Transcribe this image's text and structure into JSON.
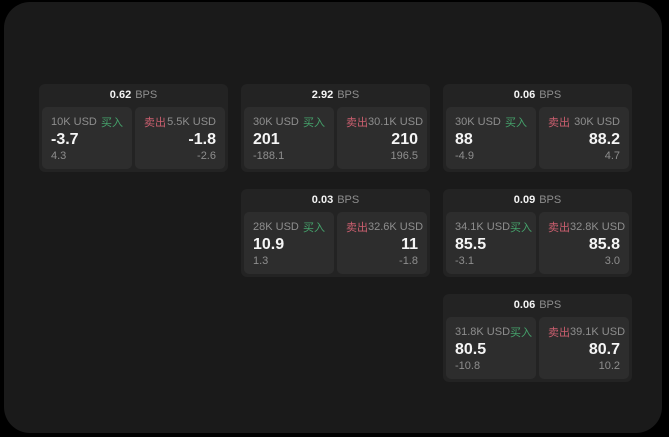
{
  "page": {
    "bps_suffix": "BPS",
    "buy_label": "买入",
    "sell_label": "卖出"
  },
  "colors": {
    "background_outer": "#000000",
    "background": "#1a1a1a",
    "card": "#232323",
    "panel": "#2d2d2d",
    "text_primary": "#f5f5f5",
    "text_secondary": "#8e8e8e",
    "buy_green": "#45a26b",
    "sell_red": "#cb5f6f"
  },
  "cards": [
    {
      "row": 1,
      "col": 1,
      "bps": "0.62",
      "buy": {
        "size": "10K USD",
        "price": "-3.7",
        "delta": "4.3"
      },
      "sell": {
        "size": "5.5K USD",
        "price": "-1.8",
        "delta": "-2.6"
      }
    },
    {
      "row": 1,
      "col": 2,
      "bps": "2.92",
      "buy": {
        "size": "30K USD",
        "price": "201",
        "delta": "-188.1"
      },
      "sell": {
        "size": "30.1K USD",
        "price": "210",
        "delta": "196.5"
      }
    },
    {
      "row": 1,
      "col": 3,
      "bps": "0.06",
      "buy": {
        "size": "30K USD",
        "price": "88",
        "delta": "-4.9"
      },
      "sell": {
        "size": "30K USD",
        "price": "88.2",
        "delta": "4.7"
      }
    },
    {
      "row": 2,
      "col": 2,
      "bps": "0.03",
      "buy": {
        "size": "28K USD",
        "price": "10.9",
        "delta": "1.3"
      },
      "sell": {
        "size": "32.6K USD",
        "price": "11",
        "delta": "-1.8"
      }
    },
    {
      "row": 2,
      "col": 3,
      "bps": "0.09",
      "buy": {
        "size": "34.1K USD",
        "price": "85.5",
        "delta": "-3.1"
      },
      "sell": {
        "size": "32.8K USD",
        "price": "85.8",
        "delta": "3.0"
      }
    },
    {
      "row": 3,
      "col": 3,
      "bps": "0.06",
      "buy": {
        "size": "31.8K USD",
        "price": "80.5",
        "delta": "-10.8"
      },
      "sell": {
        "size": "39.1K USD",
        "price": "80.7",
        "delta": "10.2"
      }
    }
  ]
}
